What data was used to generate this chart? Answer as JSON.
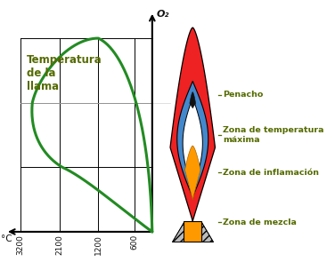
{
  "background_color": "#ffffff",
  "curve_color": "#228B22",
  "label_color": "#556B00",
  "dark_color": "#111111",
  "grid_color": "#000000",
  "outer_flame_color": "#EE2222",
  "blue_zone_color": "#4488CC",
  "white_zone_color": "#FFFFFF",
  "orange_zone_color": "#FF9900",
  "gray_zone_color": "#BBBBBB",
  "y_label": "O₂",
  "x_label": "°C",
  "flame_label": "Temperatura\nde la\nllama",
  "x_ticks": [
    "3200",
    "2100",
    "1200",
    "600"
  ],
  "zone_labels": [
    "Penacho",
    "Zona de temperatura\nmáxima",
    "Zona de inflamación",
    "Zona de mezcla"
  ]
}
